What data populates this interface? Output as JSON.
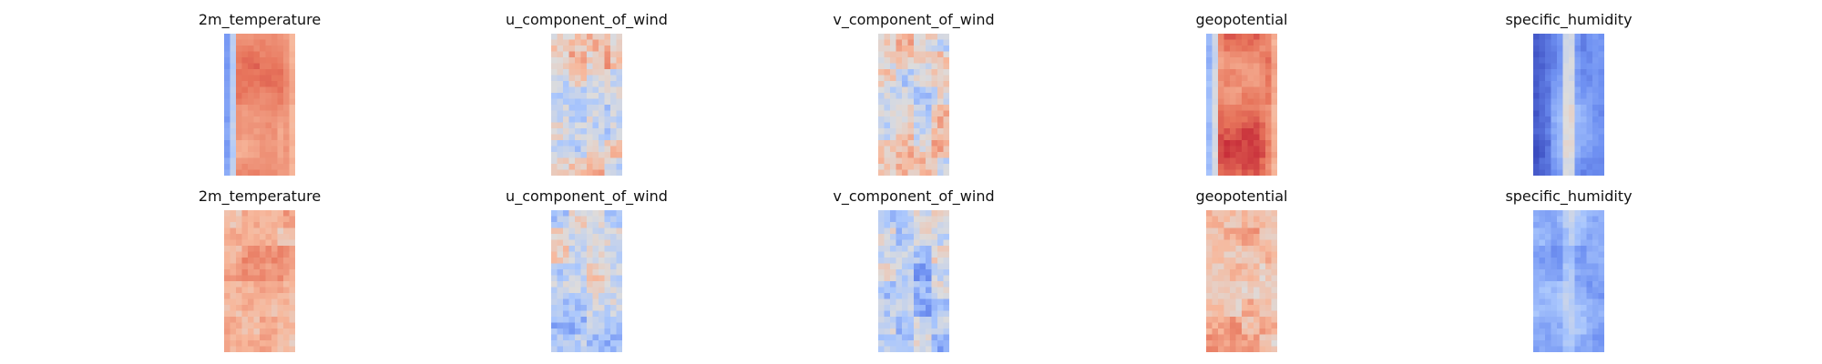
{
  "figure": {
    "colormap": "coolwarm",
    "colormap_stops": [
      "#3b4cc0",
      "#6f91f2",
      "#aac7fd",
      "#dddcdc",
      "#f7b89c",
      "#e7745b",
      "#b40426"
    ],
    "grid_cols": 12,
    "grid_rows": 24
  },
  "chart_data": [
    {
      "type": "heatmap",
      "row": 1,
      "title": "2m_temperature",
      "pattern": {
        "left_band": 0.22,
        "left_band_width": 0.16,
        "body": 0.78,
        "body_var": 0.06,
        "right_edge": 0.62,
        "noise": 0.05,
        "seed": 11
      }
    },
    {
      "type": "heatmap",
      "row": 1,
      "title": "u_component_of_wind",
      "pattern": {
        "left_band": 0.5,
        "left_band_width": 0.0,
        "body": 0.52,
        "body_var": 0.12,
        "right_edge": 0.48,
        "noise": 0.22,
        "seed": 23
      }
    },
    {
      "type": "heatmap",
      "row": 1,
      "title": "v_component_of_wind",
      "pattern": {
        "left_band": 0.5,
        "left_band_width": 0.0,
        "body": 0.56,
        "body_var": 0.1,
        "right_edge": 0.5,
        "noise": 0.24,
        "seed": 37
      }
    },
    {
      "type": "heatmap",
      "row": 1,
      "title": "geopotential",
      "pattern": {
        "left_band": 0.3,
        "left_band_width": 0.16,
        "body": 0.82,
        "body_var": 0.07,
        "right_edge": 0.6,
        "noise": 0.06,
        "seed": 41
      }
    },
    {
      "type": "heatmap",
      "row": 1,
      "title": "specific_humidity",
      "pattern": {
        "left_band": 0.05,
        "left_band_width": 0.2,
        "body": 0.2,
        "body_var": 0.05,
        "right_edge": 0.15,
        "noise": 0.06,
        "stripe": 0.62,
        "stripe_col": 0.5,
        "seed": 53
      }
    },
    {
      "type": "heatmap",
      "row": 2,
      "title": "2m_temperature",
      "pattern": {
        "left_band": 0.5,
        "left_band_width": 0.0,
        "body": 0.68,
        "body_var": 0.04,
        "right_edge": 0.62,
        "noise": 0.12,
        "seed": 61
      }
    },
    {
      "type": "heatmap",
      "row": 2,
      "title": "u_component_of_wind",
      "pattern": {
        "left_band": 0.5,
        "left_band_width": 0.0,
        "body": 0.42,
        "body_var": 0.04,
        "right_edge": 0.4,
        "noise": 0.24,
        "seed": 73
      }
    },
    {
      "type": "heatmap",
      "row": 2,
      "title": "v_component_of_wind",
      "pattern": {
        "left_band": 0.5,
        "left_band_width": 0.0,
        "body": 0.38,
        "body_var": 0.04,
        "right_edge": 0.36,
        "noise": 0.24,
        "seed": 89
      }
    },
    {
      "type": "heatmap",
      "row": 2,
      "title": "geopotential",
      "pattern": {
        "left_band": 0.5,
        "left_band_width": 0.0,
        "body": 0.66,
        "body_var": 0.04,
        "right_edge": 0.6,
        "noise": 0.14,
        "seed": 97
      }
    },
    {
      "type": "heatmap",
      "row": 2,
      "title": "specific_humidity",
      "pattern": {
        "left_band": 0.5,
        "left_band_width": 0.0,
        "body": 0.26,
        "body_var": 0.03,
        "right_edge": 0.24,
        "noise": 0.1,
        "stripe": 0.42,
        "stripe_col": 0.5,
        "seed": 101
      }
    }
  ]
}
